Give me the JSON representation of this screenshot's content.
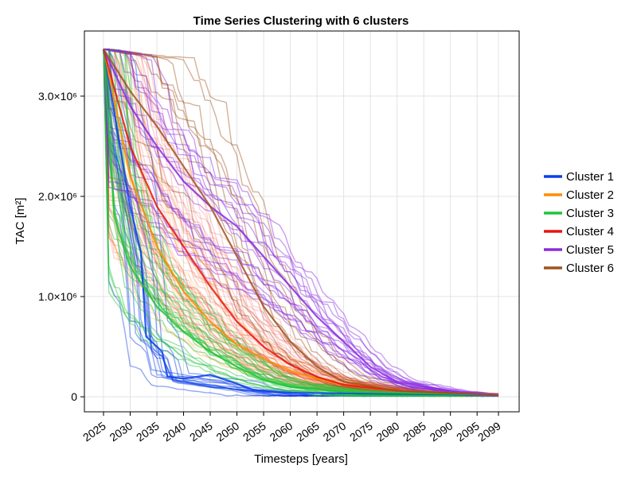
{
  "chart_data": {
    "type": "line",
    "title": "Time Series Clustering with 6 clusters",
    "xlabel": "Timesteps [years]",
    "ylabel": "TAC [m²]",
    "xlim": [
      2025,
      2099
    ],
    "ylim": [
      -150000,
      3650000
    ],
    "x_ticks": [
      2025,
      2030,
      2035,
      2040,
      2045,
      2050,
      2055,
      2060,
      2065,
      2070,
      2075,
      2080,
      2085,
      2090,
      2095,
      2099
    ],
    "x_tick_labels": [
      "2025",
      "2030",
      "2035",
      "2040",
      "2045",
      "2050",
      "2055",
      "2060",
      "2065",
      "2070",
      "2075",
      "2080",
      "2085",
      "2090",
      "2095",
      "2099"
    ],
    "y_ticks": [
      0,
      1000000,
      2000000,
      3000000
    ],
    "y_tick_labels": [
      "0",
      "1.0×10⁶",
      "2.0×10⁶",
      "3.0×10⁶"
    ],
    "grid": true,
    "legend_position": "right",
    "series": [
      {
        "name": "Cluster 1",
        "color": "#0a3fe8",
        "representative": [
          {
            "x": 2025,
            "y": 3470000
          },
          {
            "x": 2030,
            "y": 1900000
          },
          {
            "x": 2032,
            "y": 1450000
          },
          {
            "x": 2033,
            "y": 600000
          },
          {
            "x": 2036,
            "y": 450000
          },
          {
            "x": 2037,
            "y": 200000
          },
          {
            "x": 2040,
            "y": 180000
          },
          {
            "x": 2045,
            "y": 220000
          },
          {
            "x": 2050,
            "y": 130000
          },
          {
            "x": 2053,
            "y": 70000
          },
          {
            "x": 2060,
            "y": 40000
          },
          {
            "x": 2099,
            "y": 20000
          }
        ]
      },
      {
        "name": "Cluster 2",
        "color": "#ff8c00",
        "representative": [
          {
            "x": 2025,
            "y": 3470000
          },
          {
            "x": 2030,
            "y": 2200000
          },
          {
            "x": 2035,
            "y": 1500000
          },
          {
            "x": 2040,
            "y": 1050000
          },
          {
            "x": 2045,
            "y": 750000
          },
          {
            "x": 2050,
            "y": 520000
          },
          {
            "x": 2055,
            "y": 380000
          },
          {
            "x": 2060,
            "y": 260000
          },
          {
            "x": 2065,
            "y": 180000
          },
          {
            "x": 2070,
            "y": 120000
          },
          {
            "x": 2080,
            "y": 60000
          },
          {
            "x": 2099,
            "y": 25000
          }
        ]
      },
      {
        "name": "Cluster 3",
        "color": "#22c43a",
        "representative": [
          {
            "x": 2025,
            "y": 3470000
          },
          {
            "x": 2027,
            "y": 1800000
          },
          {
            "x": 2030,
            "y": 1300000
          },
          {
            "x": 2035,
            "y": 900000
          },
          {
            "x": 2040,
            "y": 650000
          },
          {
            "x": 2045,
            "y": 450000
          },
          {
            "x": 2050,
            "y": 300000
          },
          {
            "x": 2055,
            "y": 170000
          },
          {
            "x": 2060,
            "y": 100000
          },
          {
            "x": 2070,
            "y": 50000
          },
          {
            "x": 2099,
            "y": 20000
          }
        ]
      },
      {
        "name": "Cluster 4",
        "color": "#e8140c",
        "representative": [
          {
            "x": 2025,
            "y": 3470000
          },
          {
            "x": 2030,
            "y": 2500000
          },
          {
            "x": 2035,
            "y": 1900000
          },
          {
            "x": 2040,
            "y": 1500000
          },
          {
            "x": 2045,
            "y": 1100000
          },
          {
            "x": 2050,
            "y": 750000
          },
          {
            "x": 2055,
            "y": 500000
          },
          {
            "x": 2060,
            "y": 320000
          },
          {
            "x": 2065,
            "y": 200000
          },
          {
            "x": 2070,
            "y": 120000
          },
          {
            "x": 2080,
            "y": 60000
          },
          {
            "x": 2099,
            "y": 20000
          }
        ]
      },
      {
        "name": "Cluster 5",
        "color": "#8a2be2",
        "representative": [
          {
            "x": 2025,
            "y": 3470000
          },
          {
            "x": 2030,
            "y": 2900000
          },
          {
            "x": 2035,
            "y": 2500000
          },
          {
            "x": 2040,
            "y": 2150000
          },
          {
            "x": 2045,
            "y": 1900000
          },
          {
            "x": 2050,
            "y": 1700000
          },
          {
            "x": 2055,
            "y": 1400000
          },
          {
            "x": 2060,
            "y": 1100000
          },
          {
            "x": 2065,
            "y": 800000
          },
          {
            "x": 2070,
            "y": 550000
          },
          {
            "x": 2075,
            "y": 300000
          },
          {
            "x": 2080,
            "y": 150000
          },
          {
            "x": 2090,
            "y": 50000
          },
          {
            "x": 2099,
            "y": 20000
          }
        ]
      },
      {
        "name": "Cluster 6",
        "color": "#a0521e",
        "representative": [
          {
            "x": 2025,
            "y": 3470000
          },
          {
            "x": 2030,
            "y": 3050000
          },
          {
            "x": 2035,
            "y": 2700000
          },
          {
            "x": 2040,
            "y": 2300000
          },
          {
            "x": 2045,
            "y": 1900000
          },
          {
            "x": 2050,
            "y": 1400000
          },
          {
            "x": 2055,
            "y": 900000
          },
          {
            "x": 2060,
            "y": 550000
          },
          {
            "x": 2065,
            "y": 300000
          },
          {
            "x": 2070,
            "y": 150000
          },
          {
            "x": 2080,
            "y": 60000
          },
          {
            "x": 2099,
            "y": 20000
          }
        ]
      }
    ]
  }
}
